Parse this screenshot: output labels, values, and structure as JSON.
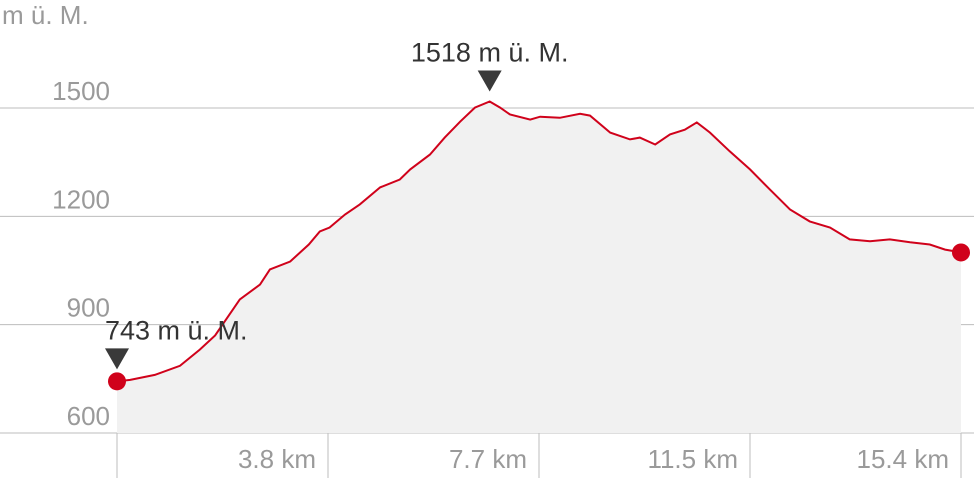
{
  "chart_data": {
    "type": "area",
    "title": "",
    "ylabel": "m ü. M.",
    "xlabel": "",
    "ylim": [
      600,
      1500
    ],
    "xlim": [
      0,
      15.4
    ],
    "y_ticks": [
      {
        "value": 600,
        "label": "600"
      },
      {
        "value": 900,
        "label": "900"
      },
      {
        "value": 1200,
        "label": "1200"
      },
      {
        "value": 1500,
        "label": "1500"
      }
    ],
    "x_ticks": [
      {
        "value": 3.85,
        "label": "3.8 km"
      },
      {
        "value": 7.7,
        "label": "7.7 km"
      },
      {
        "value": 11.55,
        "label": "11.5 km"
      },
      {
        "value": 15.4,
        "label": "15.4 km"
      }
    ],
    "grid": true,
    "colors": {
      "line": "#d0021b",
      "fill": "#f1f1f1",
      "grid": "#bdbdbd",
      "marker": "#3a3a3a"
    },
    "annotations": [
      {
        "label": "743 m ü. M.",
        "x": 0,
        "y": 743,
        "type": "min"
      },
      {
        "label": "1518 m ü. M.",
        "x": 6.8,
        "y": 1518,
        "type": "max"
      }
    ],
    "x": [
      0,
      0.24,
      0.69,
      1.15,
      1.51,
      1.79,
      2.24,
      2.61,
      2.79,
      3.16,
      3.5,
      3.7,
      3.88,
      4.16,
      4.43,
      4.8,
      5.16,
      5.35,
      5.71,
      5.98,
      6.26,
      6.53,
      6.8,
      6.99,
      7.17,
      7.54,
      7.72,
      8.08,
      8.45,
      8.63,
      9.0,
      9.36,
      9.54,
      9.82,
      10.09,
      10.36,
      10.58,
      10.82,
      11.18,
      11.55,
      11.91,
      12.28,
      12.64,
      13.01,
      13.37,
      13.74,
      14.1,
      14.47,
      14.83,
      15.11,
      15.4
    ],
    "y": [
      743,
      747,
      761,
      786,
      831,
      870,
      970,
      1011,
      1053,
      1075,
      1122,
      1158,
      1169,
      1205,
      1233,
      1280,
      1302,
      1330,
      1371,
      1418,
      1462,
      1501,
      1518,
      1501,
      1482,
      1468,
      1476,
      1473,
      1484,
      1479,
      1432,
      1413,
      1418,
      1399,
      1427,
      1440,
      1460,
      1432,
      1380,
      1330,
      1275,
      1219,
      1186,
      1169,
      1136,
      1131,
      1136,
      1128,
      1122,
      1108,
      1100
    ]
  }
}
